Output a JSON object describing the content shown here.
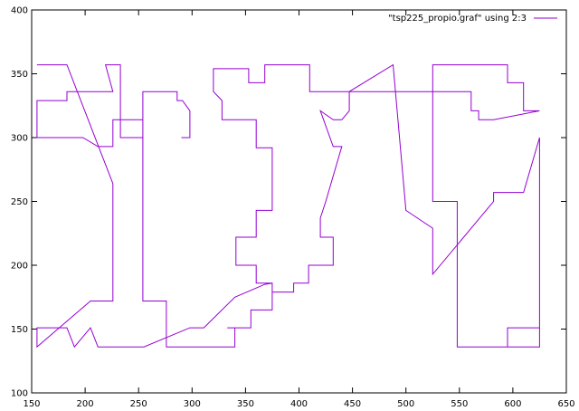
{
  "chart_data": {
    "type": "line",
    "title": "",
    "xlabel": "",
    "ylabel": "",
    "xlim": [
      150,
      650
    ],
    "ylim": [
      100,
      400
    ],
    "xticks": [
      150,
      200,
      250,
      300,
      350,
      400,
      450,
      500,
      550,
      600,
      650
    ],
    "yticks": [
      100,
      150,
      200,
      250,
      300,
      350,
      400
    ],
    "grid": false,
    "legend_position": "top-right",
    "series": [
      {
        "name": "\"tsp225_propio.graf\" using 2:3",
        "color": "#9400d3",
        "points": [
          [
            155,
            357
          ],
          [
            183,
            357
          ],
          [
            226,
            264
          ],
          [
            226,
            172
          ],
          [
            205,
            172
          ],
          [
            155,
            136
          ],
          [
            155,
            151
          ],
          [
            183,
            151
          ],
          [
            190,
            136
          ],
          [
            205,
            151
          ],
          [
            212,
            136
          ],
          [
            255,
            136
          ],
          [
            298,
            151
          ],
          [
            311,
            151
          ],
          [
            340,
            175
          ],
          [
            368,
            185
          ],
          [
            375,
            186
          ],
          [
            375,
            179
          ],
          [
            395,
            179
          ],
          [
            395,
            186
          ],
          [
            409,
            186
          ],
          [
            409,
            200
          ],
          [
            432,
            200
          ],
          [
            432,
            222
          ],
          [
            420,
            222
          ],
          [
            420,
            237
          ],
          [
            425,
            250
          ],
          [
            440,
            293
          ],
          [
            432,
            293
          ],
          [
            420,
            321
          ],
          [
            432,
            314
          ],
          [
            440,
            314
          ],
          [
            447,
            321
          ],
          [
            447,
            336
          ],
          [
            488,
            357
          ],
          [
            500,
            243
          ],
          [
            525,
            229
          ],
          [
            525,
            193
          ],
          [
            582,
            250
          ],
          [
            582,
            257
          ],
          [
            610,
            257
          ],
          [
            625,
            300
          ],
          [
            625,
            136
          ],
          [
            595,
            136
          ],
          [
            595,
            151
          ],
          [
            610,
            151
          ],
          [
            625,
            151
          ],
          [
            625,
            136
          ],
          [
            548,
            136
          ],
          [
            548,
            250
          ],
          [
            525,
            250
          ],
          [
            525,
            357
          ],
          [
            595,
            357
          ],
          [
            595,
            343
          ],
          [
            610,
            343
          ],
          [
            610,
            321
          ],
          [
            625,
            321
          ],
          [
            582,
            314
          ],
          [
            568,
            314
          ],
          [
            568,
            321
          ],
          [
            561,
            321
          ],
          [
            561,
            336
          ],
          [
            410,
            336
          ],
          [
            410,
            357
          ],
          [
            368,
            357
          ],
          [
            368,
            343
          ],
          [
            353,
            343
          ],
          [
            353,
            354
          ],
          [
            320,
            354
          ],
          [
            320,
            336
          ],
          [
            328,
            329
          ],
          [
            328,
            314
          ],
          [
            360,
            314
          ],
          [
            360,
            292
          ],
          [
            375,
            292
          ],
          [
            375,
            243
          ],
          [
            360,
            243
          ],
          [
            360,
            222
          ],
          [
            341,
            222
          ],
          [
            341,
            200
          ],
          [
            360,
            200
          ],
          [
            360,
            186
          ],
          [
            375,
            186
          ],
          [
            375,
            165
          ],
          [
            355,
            165
          ],
          [
            355,
            151
          ],
          [
            333,
            151
          ],
          [
            340,
            151
          ],
          [
            340,
            136
          ],
          [
            276,
            136
          ],
          [
            276,
            172
          ],
          [
            254,
            172
          ],
          [
            254,
            314
          ],
          [
            226,
            314
          ],
          [
            226,
            293
          ],
          [
            212,
            293
          ],
          [
            198,
            300
          ],
          [
            155,
            300
          ],
          [
            155,
            329
          ],
          [
            183,
            329
          ],
          [
            183,
            336
          ],
          [
            226,
            336
          ],
          [
            219,
            357
          ],
          [
            233,
            357
          ],
          [
            233,
            300
          ],
          [
            248,
            300
          ],
          [
            254,
            300
          ],
          [
            254,
            336
          ],
          [
            286,
            336
          ],
          [
            286,
            329
          ],
          [
            291,
            329
          ],
          [
            298,
            321
          ],
          [
            298,
            300
          ],
          [
            290,
            300
          ]
        ]
      }
    ]
  }
}
